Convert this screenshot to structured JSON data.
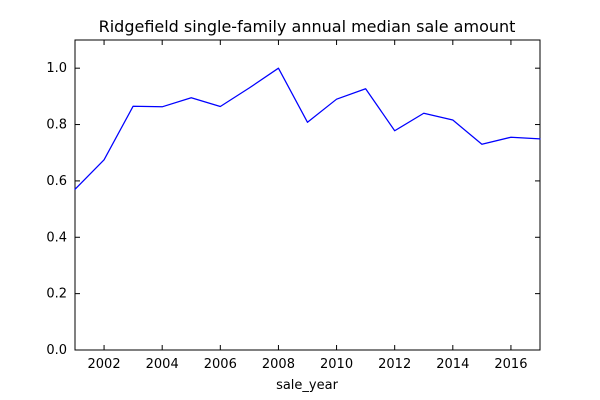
{
  "chart_data": {
    "type": "line",
    "title": "Ridgefield single-family annual median sale amount",
    "xlabel": "sale_year",
    "ylabel": "",
    "xlim": [
      2001,
      2017
    ],
    "ylim": [
      0.0,
      1.1
    ],
    "xticks": [
      2002,
      2004,
      2006,
      2008,
      2010,
      2012,
      2014,
      2016
    ],
    "yticks": [
      0.0,
      0.2,
      0.4,
      0.6,
      0.8,
      1.0
    ],
    "xtick_labels": [
      "2002",
      "2004",
      "2006",
      "2008",
      "2010",
      "2012",
      "2014",
      "2016"
    ],
    "ytick_labels": [
      "0.0",
      "0.2",
      "0.4",
      "0.6",
      "0.8",
      "1.0"
    ],
    "grid": false,
    "legend": "none",
    "series": [
      {
        "color": "#0000ff",
        "x": [
          2001,
          2002,
          2003,
          2004,
          2005,
          2006,
          2007,
          2008,
          2009,
          2010,
          2011,
          2012,
          2013,
          2014,
          2015,
          2016,
          2017
        ],
        "y": [
          0.57,
          0.675,
          0.865,
          0.863,
          0.895,
          0.864,
          0.93,
          1.0,
          0.808,
          0.89,
          0.927,
          0.778,
          0.84,
          0.816,
          0.73,
          0.755,
          0.749
        ]
      }
    ]
  }
}
